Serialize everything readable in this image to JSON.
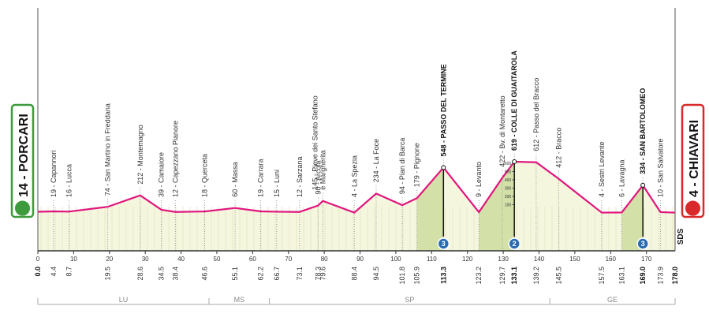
{
  "chart_data": {
    "type": "elevation-profile",
    "xlim": [
      0,
      178
    ],
    "xticks": [
      0,
      10,
      20,
      30,
      40,
      50,
      60,
      70,
      80,
      90,
      100,
      110,
      120,
      130,
      140,
      150,
      160,
      170
    ],
    "x": [
      0,
      4.4,
      8.7,
      19.5,
      28.6,
      34.5,
      38.4,
      46.6,
      55.1,
      62.2,
      66.7,
      73.1,
      78.3,
      79.6,
      88.4,
      94.5,
      101.8,
      105.9,
      113.3,
      123.2,
      129.7,
      133.1,
      139.2,
      145.5,
      157.5,
      163.1,
      169.0,
      173.9,
      178
    ],
    "x_labels": [
      "0.0",
      "4.4",
      "8.7",
      "19.5",
      "28.6",
      "34.5",
      "38.4",
      "46.6",
      "55.1",
      "62.2",
      "66.7",
      "73.1",
      "78.3",
      "79.6",
      "88.4",
      "94.5",
      "101.8",
      "105.9",
      "113.3",
      "123.2",
      "129.7",
      "133.1",
      "139.2",
      "145.5",
      "157.5",
      "163.1",
      "169.0",
      "173.9",
      "178.0"
    ],
    "series": [
      {
        "color": "#e0157d",
        "values": [
          14,
          19,
          16,
          74,
          212,
          39,
          12,
          18,
          60,
          19,
          15,
          12,
          90,
          145,
          4,
          234,
          94,
          179,
          548,
          9,
          422,
          619,
          612,
          412,
          4,
          6,
          334,
          10,
          4
        ],
        "value_labels": [
          "14 - PORCARI",
          "19 - Capannori",
          "16 - Lucca",
          "74 - San Martino in Freddana",
          "212 - Montemagno",
          "39 - Camaiore",
          "12 - Capezzano Pianore",
          "18 - Querceta",
          "60 - Massa",
          "19 - Carrara",
          "15 - Luni",
          "12 - Sarzana",
          "90 - Arcola",
          "145 - Pieve dei Santo Stefano\ne Margherita",
          "4 - La Spezia",
          "234 - La Foce",
          "94 - Pian di Barca",
          "179 - Pignone",
          "548 - PASSO DEL TERMINE",
          "9 - Levanto",
          "422 - Bv. di Montaretto",
          "619 - COLLE DI GUAITAROLA",
          "612 - Passo del Bracco",
          "412 - Bracco",
          "4 - Sestri Levante",
          "6 - Lavagna",
          "334 - SAN BARTOLOMEO",
          "10 - San Salvatore",
          "4 - CHIAVARI"
        ]
      }
    ],
    "highlight": [
      18,
      21,
      26
    ],
    "yticks": [
      100,
      200,
      300,
      400,
      500,
      600
    ],
    "climbs": [
      {
        "category": "3",
        "from": 105.9,
        "km": 113.3
      },
      {
        "category": "2",
        "from": 123.2,
        "km": 133.1
      },
      {
        "category": "3",
        "from": 163.1,
        "km": 169.0
      }
    ],
    "provinces": [
      {
        "name": "LU",
        "from": 0,
        "to": 47.8
      },
      {
        "name": "MS",
        "from": 47.8,
        "to": 64.7
      },
      {
        "name": "SP",
        "from": 64.7,
        "to": 143.0
      },
      {
        "name": "GE",
        "from": 143.0,
        "to": 178
      }
    ],
    "logo": "SDS"
  }
}
